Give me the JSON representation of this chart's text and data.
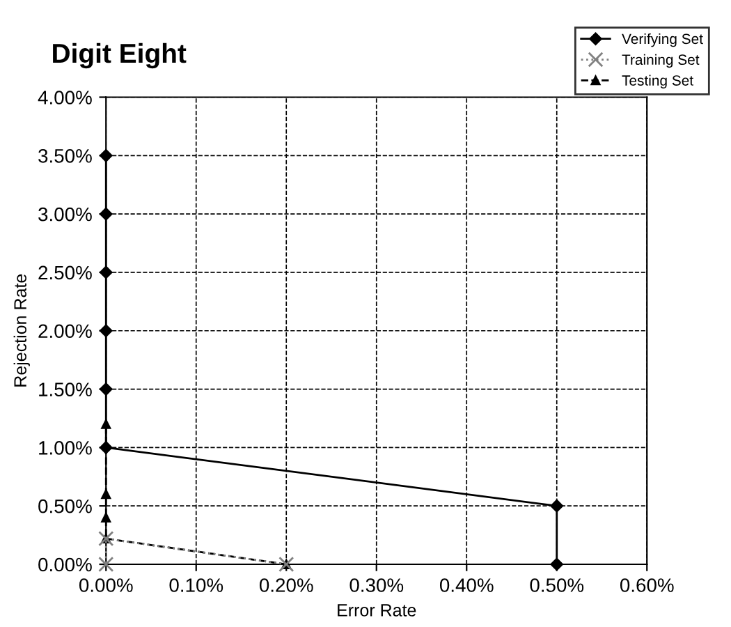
{
  "chart_data": {
    "type": "line",
    "title": "Digit Eight",
    "xlabel": "Error Rate",
    "ylabel": "Rejection Rate",
    "series": [
      {
        "name": "Verifying Set",
        "color": "#000000",
        "marker": "diamond",
        "line_style": "solid",
        "x": [
          0.5,
          0.5,
          0,
          0,
          0,
          0,
          0,
          0
        ],
        "values": [
          0,
          0.5,
          1.0,
          1.5,
          2.0,
          2.5,
          3.0,
          3.5
        ]
      },
      {
        "name": "Training Set",
        "color": "#808080",
        "marker": "cross",
        "line_style": "dotted",
        "x": [
          0.2,
          0,
          0
        ],
        "values": [
          0,
          0.22,
          0
        ]
      },
      {
        "name": "Testing Set",
        "color": "#000000",
        "marker": "triangle",
        "line_style": "dashed",
        "x": [
          0.2,
          0,
          0,
          0,
          0
        ],
        "values": [
          0,
          0.22,
          0.4,
          0.6,
          1.2
        ]
      }
    ],
    "xlim": [
      0,
      0.6
    ],
    "ylim": [
      0,
      4
    ],
    "xticks": [
      {
        "value": 0,
        "label": "0.00%"
      },
      {
        "value": 0.1,
        "label": "0.10%"
      },
      {
        "value": 0.2,
        "label": "0.20%"
      },
      {
        "value": 0.3,
        "label": "0.30%"
      },
      {
        "value": 0.4,
        "label": "0.40%"
      },
      {
        "value": 0.5,
        "label": "0.50%"
      },
      {
        "value": 0.6,
        "label": "0.60%"
      }
    ],
    "yticks": [
      {
        "value": 0,
        "label": "0.00%"
      },
      {
        "value": 0.5,
        "label": "0.50%"
      },
      {
        "value": 1,
        "label": "1.00%"
      },
      {
        "value": 1.5,
        "label": "1.50%"
      },
      {
        "value": 2,
        "label": "2.00%"
      },
      {
        "value": 2.5,
        "label": "2.50%"
      },
      {
        "value": 3,
        "label": "3.00%"
      },
      {
        "value": 3.5,
        "label": "3.50%"
      },
      {
        "value": 4,
        "label": "4.00%"
      }
    ],
    "grid": true,
    "legend": "top right"
  }
}
